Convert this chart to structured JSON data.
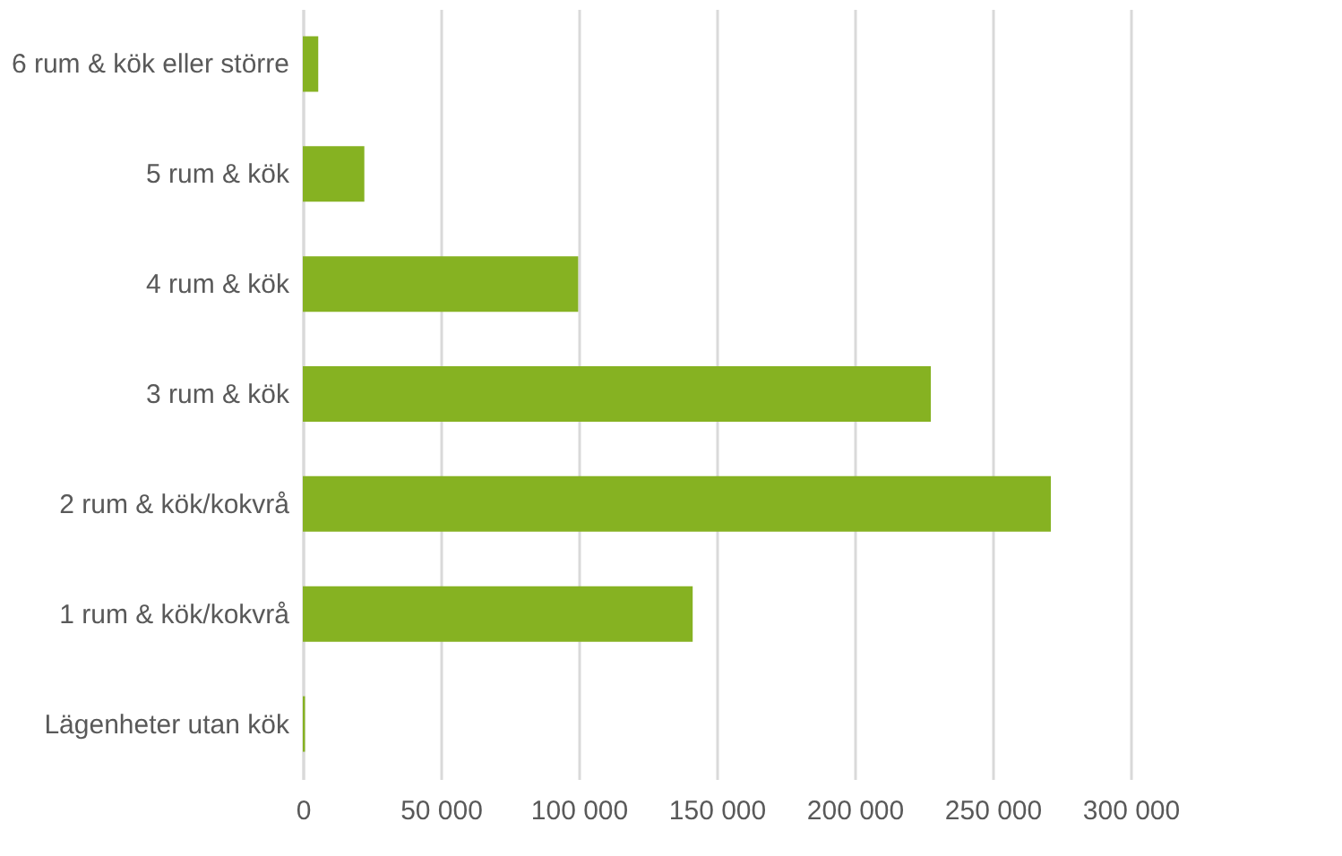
{
  "chart_data": {
    "type": "bar",
    "orientation": "horizontal",
    "categories": [
      "6 rum & kök eller större",
      "5 rum & kök",
      "4 rum & kök",
      "3 rum & kök",
      "2 rum & kök/kokvrå",
      "1 rum & kök/kokvrå",
      "Lägenheter utan kök"
    ],
    "values": [
      5600,
      22300,
      99800,
      227600,
      271100,
      141300,
      800
    ],
    "color": "#86b222",
    "xlim": [
      0,
      300000
    ],
    "xticks": [
      {
        "value": 0,
        "label": "0"
      },
      {
        "value": 50000,
        "label": "50 000"
      },
      {
        "value": 100000,
        "label": "100 000"
      },
      {
        "value": 150000,
        "label": "150 000"
      },
      {
        "value": 200000,
        "label": "200 000"
      },
      {
        "value": 250000,
        "label": "250 000"
      },
      {
        "value": 300000,
        "label": "300 000"
      }
    ],
    "grid": "x"
  }
}
